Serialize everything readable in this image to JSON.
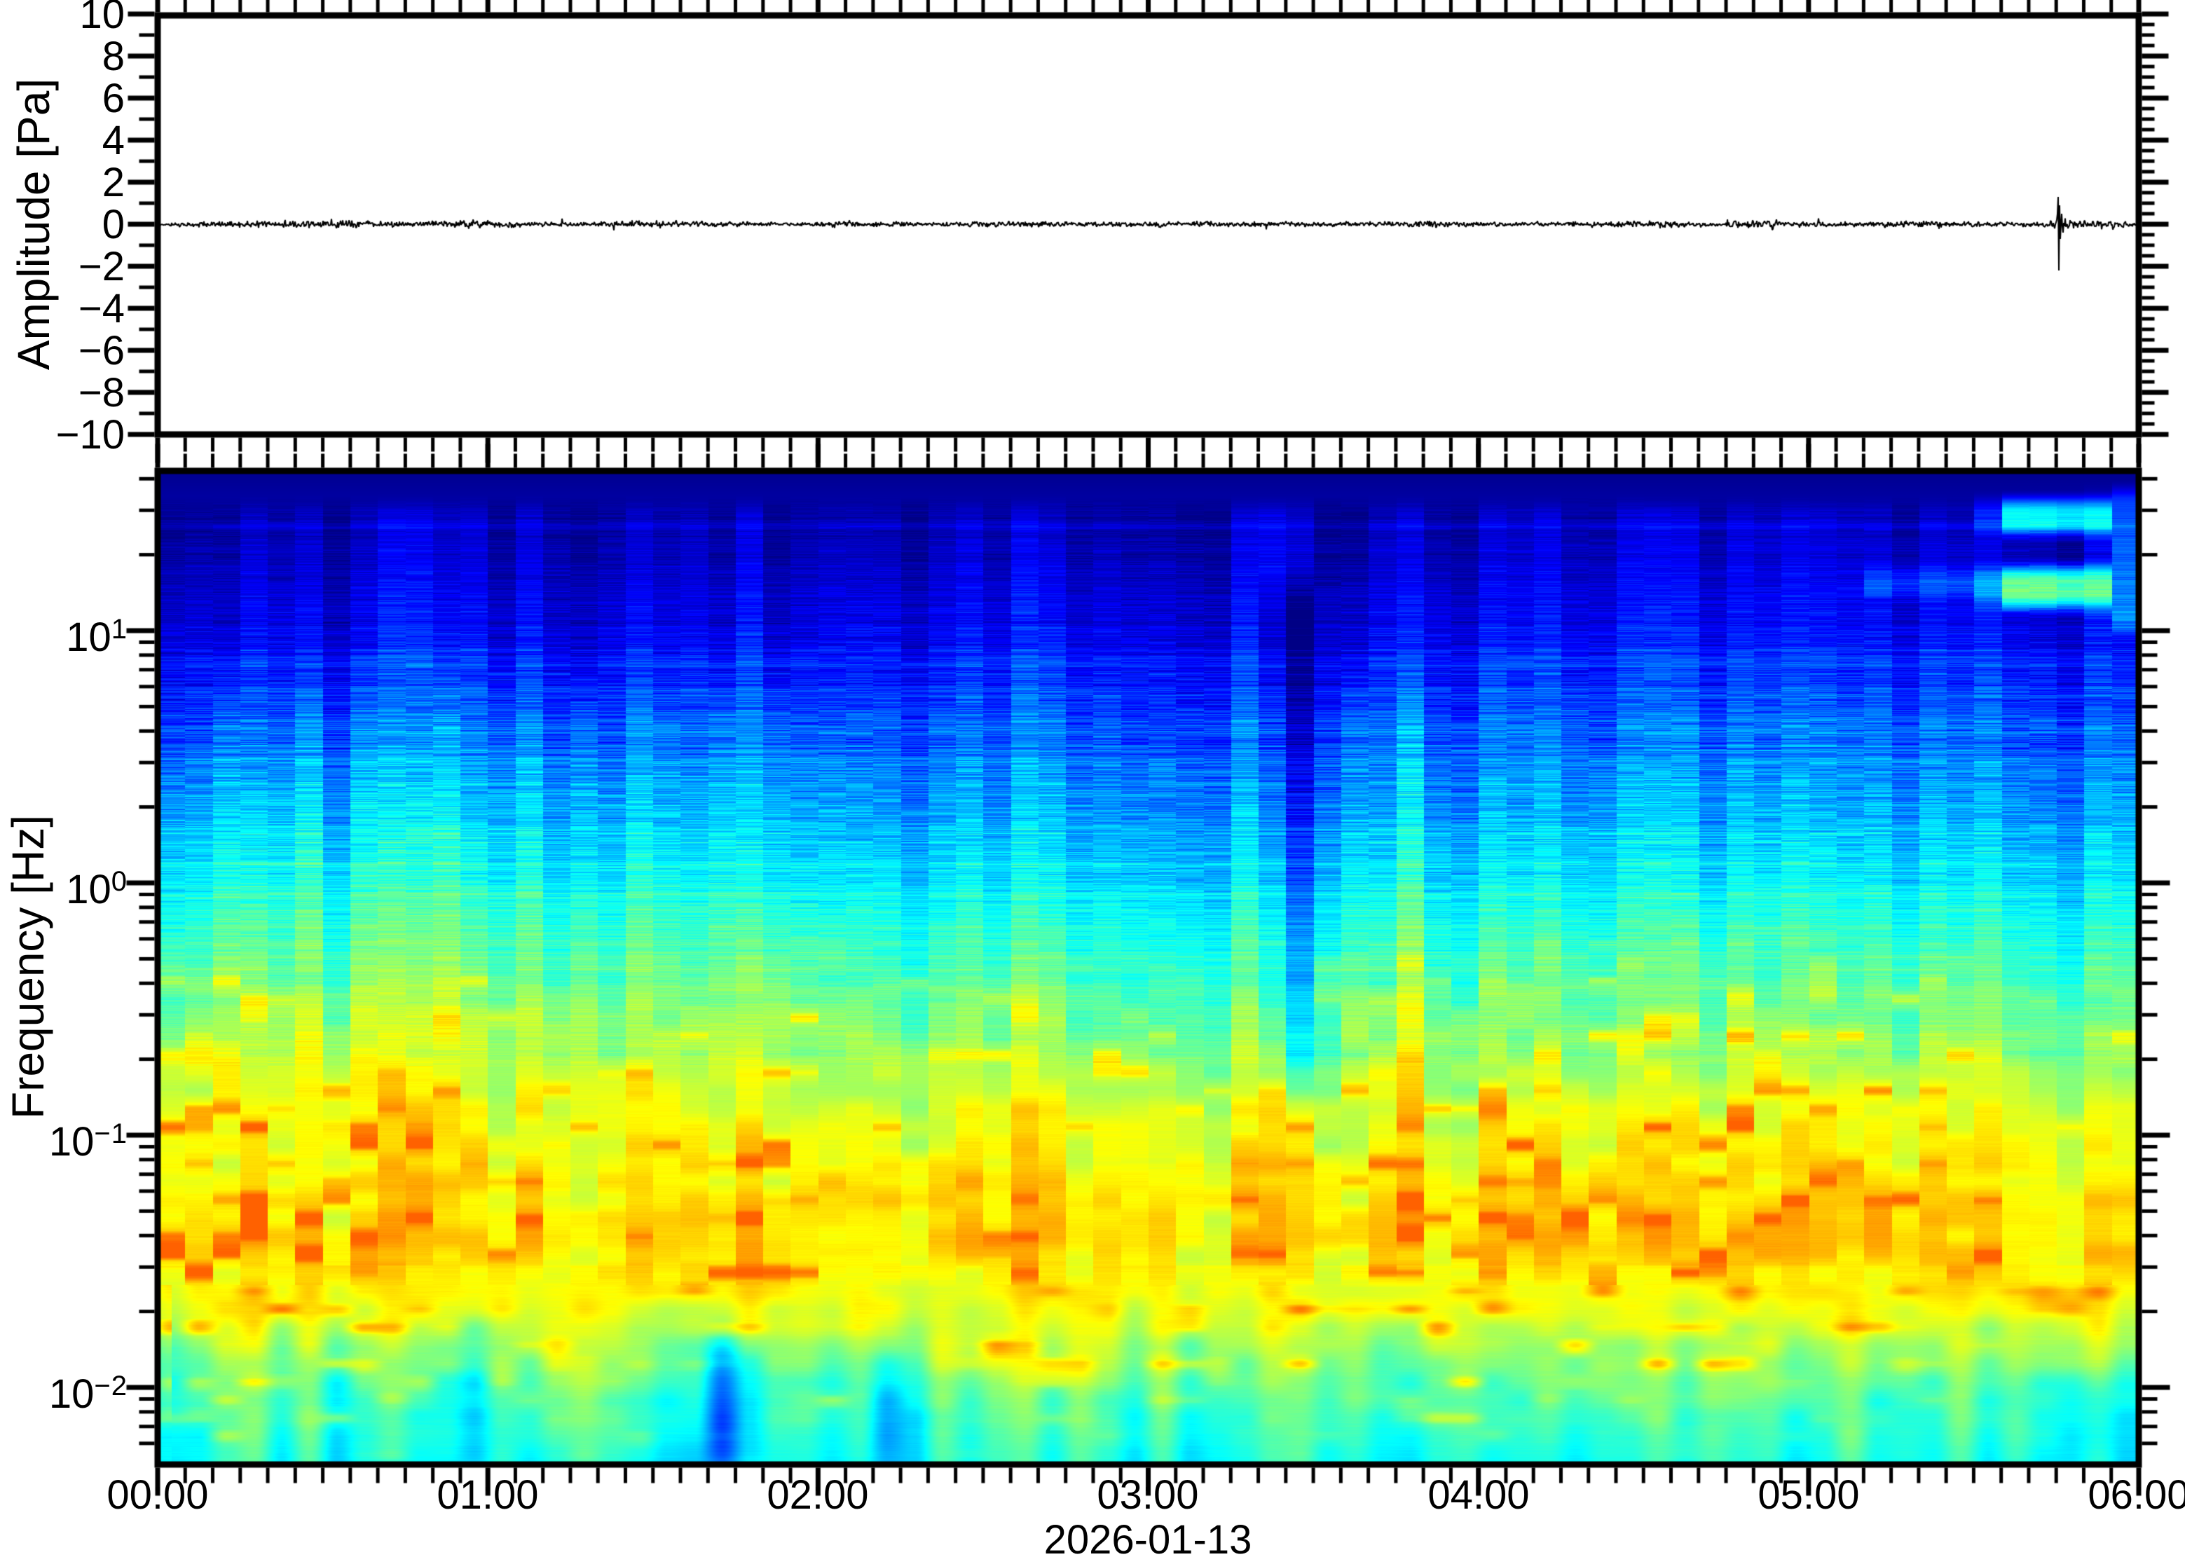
{
  "figure": {
    "background": "#ffffff",
    "frame_color": "#000000",
    "trace_color": "#000000"
  },
  "top_panel": {
    "ylabel": "Amplitude [Pa]",
    "ylim": [
      -10,
      10
    ],
    "y_tick_labels": [
      "10",
      "8",
      "6",
      "4",
      "2",
      "0",
      "−2",
      "−4",
      "−6",
      "−8",
      "−10"
    ]
  },
  "bottom_panel": {
    "ylabel": "Frequency [Hz]",
    "y_scale": "log",
    "y_tick_labels": [
      {
        "mant": "10",
        "exp": "1"
      },
      {
        "mant": "10",
        "exp": "0"
      },
      {
        "mant": "10",
        "exp": "−1"
      },
      {
        "mant": "10",
        "exp": "−2"
      }
    ]
  },
  "x_axis": {
    "tick_labels": [
      "00:00",
      "01:00",
      "02:00",
      "03:00",
      "04:00",
      "05:00",
      "06:00"
    ],
    "minor_tick_minutes": 5,
    "date_label": "2026-01-13"
  },
  "chart_data": {
    "type": "heatmap",
    "subtype": "waveform + spectrogram",
    "title": "",
    "xlabel": "2026-01-13",
    "x_range_hours": [
      0,
      6
    ],
    "waveform": {
      "units": "Pa",
      "ylim": [
        -10,
        10
      ],
      "mean_pa": 0,
      "noise_rms_pa": 0.11,
      "envelope_bumps": [
        {
          "t": 0.25,
          "a": 0.05
        },
        {
          "t": 0.55,
          "a": 0.12
        },
        {
          "t": 0.95,
          "a": 0.1
        },
        {
          "t": 1.5,
          "a": 0.07
        },
        {
          "t": 2.1,
          "a": 0.05
        },
        {
          "t": 2.6,
          "a": 0.05
        },
        {
          "t": 3.1,
          "a": 0.04
        },
        {
          "t": 3.8,
          "a": 0.07
        },
        {
          "t": 4.5,
          "a": 0.06
        },
        {
          "t": 4.85,
          "a": 0.1
        },
        {
          "t": 5.35,
          "a": 0.08
        },
        {
          "t": 5.85,
          "a": 0.14
        }
      ],
      "transient": {
        "t": 5.755,
        "peak_up_pa": 1.3,
        "peak_down_pa": -2.2,
        "shape": [
          [
            -3,
            0.2
          ],
          [
            -2,
            0.5
          ],
          [
            -1,
            1.3
          ],
          [
            0,
            -2.2
          ],
          [
            1,
            0.9
          ],
          [
            2,
            -0.7
          ],
          [
            4,
            0.5
          ],
          [
            6,
            -0.4
          ],
          [
            9,
            0.28
          ],
          [
            13,
            -0.2
          ],
          [
            18,
            0.12
          ],
          [
            24,
            -0.08
          ]
        ]
      }
    },
    "spectrogram": {
      "freq_top_hz": 43,
      "freq_bottom_hz": 0.005,
      "decades_labeled": [
        10,
        1,
        0.1,
        0.01
      ],
      "colormap": "jet",
      "colormap_anchors": [
        "#00007f",
        "#0000ff",
        "#00ffff",
        "#80ff80",
        "#ffff00",
        "#ff8000",
        "#ff0000"
      ],
      "time_bin_minutes": 5,
      "n_time_bins": 72,
      "power_profile": [
        [
          0.0,
          0.015
        ],
        [
          0.05,
          0.05
        ],
        [
          0.13,
          0.1
        ],
        [
          0.2,
          0.16
        ],
        [
          0.28,
          0.23
        ],
        [
          0.36,
          0.31
        ],
        [
          0.44,
          0.39
        ],
        [
          0.5,
          0.45
        ],
        [
          0.56,
          0.51
        ],
        [
          0.62,
          0.57
        ],
        [
          0.67,
          0.62
        ],
        [
          0.72,
          0.655
        ],
        [
          0.78,
          0.67
        ],
        [
          0.84,
          0.62
        ],
        [
          0.88,
          0.555
        ],
        [
          0.92,
          0.49
        ],
        [
          0.96,
          0.445
        ],
        [
          1.0,
          0.4
        ]
      ],
      "texture": {
        "striation_amp": 0.075,
        "striation_center_f": 0.3,
        "mottle_amp": 0.07,
        "mottle_band": [
          0.5,
          0.97
        ],
        "column_contrast": 0.05,
        "bottom_column_contrast": 0.07,
        "bottom_blur_start_f": 0.82
      },
      "features": [
        {
          "kind": "dark-column",
          "t": 3.43,
          "sigma_h": 0.055,
          "f1": 0.12,
          "f2": 0.62,
          "dv": -0.22
        },
        {
          "kind": "bright-columns",
          "times": [
            0.2,
            0.43,
            0.65,
            0.87,
            1.08,
            1.28,
            1.5,
            1.72,
            1.9,
            3.62,
            3.8
          ],
          "sigma_h": 0.045,
          "f1": 0.22,
          "f2": 0.64,
          "dv": 0.055
        },
        {
          "kind": "bright-streak",
          "t1": 5.56,
          "t2": 5.9,
          "f1": 0.03,
          "f2": 0.062,
          "dv": 0.34
        },
        {
          "kind": "bright-streak",
          "t1": 5.56,
          "t2": 5.9,
          "f1": 0.098,
          "f2": 0.136,
          "dv": 0.4
        },
        {
          "kind": "bright-streak",
          "t1": 5.9,
          "t2": 6.02,
          "f1": 0.02,
          "f2": 0.16,
          "dv": 0.15
        },
        {
          "kind": "bright-streak",
          "t1": 5.15,
          "t2": 5.56,
          "f1": 0.1,
          "f2": 0.125,
          "dv": 0.1
        },
        {
          "kind": "thin-band",
          "f": 0.055,
          "halfwidth": 0.004,
          "dv": 0.05
        },
        {
          "kind": "bottom-blob",
          "t": 1.74,
          "sigma_h": 0.07,
          "f1": 0.87,
          "f2": 1.0,
          "dv": -0.26
        },
        {
          "kind": "bottom-blob",
          "t": 0.99,
          "sigma_h": 0.06,
          "f1": 0.85,
          "f2": 1.0,
          "dv": -0.13
        },
        {
          "kind": "bottom-blob",
          "t": 2.22,
          "sigma_h": 0.06,
          "f1": 0.9,
          "f2": 1.0,
          "dv": -0.1
        },
        {
          "kind": "bottom-blob",
          "t": 5.88,
          "sigma_h": 0.12,
          "f1": 0.9,
          "f2": 1.0,
          "dv": -0.08
        },
        {
          "kind": "left-brighten",
          "t1": 0.0,
          "t2": 3.0,
          "f1": 0.3,
          "f2": 0.66,
          "dv": 0.035
        }
      ]
    }
  }
}
